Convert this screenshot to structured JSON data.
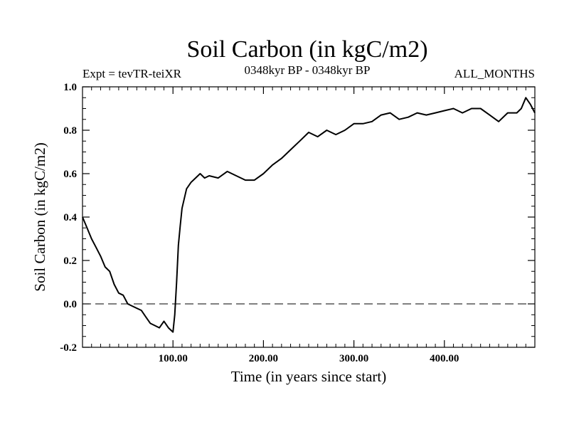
{
  "chart_data": {
    "type": "line",
    "title": "Soil Carbon (in kgC/m2)",
    "left_subtitle": "Expt = tevTR-teiXR",
    "center_subtitle": "0348kyr BP - 0348kyr BP",
    "right_subtitle": "ALL_MONTHS",
    "xlabel": "Time (in years since start)",
    "ylabel": "Soil Carbon (in kgC/m2)",
    "xlim": [
      0,
      500
    ],
    "ylim": [
      -0.2,
      1.0
    ],
    "x_ticks": [
      100,
      200,
      300,
      400
    ],
    "x_tick_labels": [
      "100.00",
      "200.00",
      "300.00",
      "400.00"
    ],
    "y_ticks": [
      -0.2,
      0.0,
      0.2,
      0.4,
      0.6,
      0.8,
      1.0
    ],
    "y_tick_labels": [
      "-0.2",
      "0.0",
      "0.2",
      "0.4",
      "0.6",
      "0.8",
      "1.0"
    ],
    "reference_line": {
      "y": 0.0,
      "style": "dashed"
    },
    "series": [
      {
        "name": "Soil Carbon",
        "x": [
          0,
          5,
          10,
          15,
          20,
          25,
          30,
          35,
          40,
          45,
          50,
          55,
          60,
          65,
          70,
          75,
          80,
          85,
          90,
          95,
          100,
          102,
          104,
          106,
          108,
          110,
          115,
          120,
          125,
          130,
          135,
          140,
          150,
          160,
          170,
          180,
          190,
          200,
          210,
          220,
          230,
          240,
          250,
          260,
          270,
          280,
          290,
          300,
          310,
          320,
          330,
          340,
          350,
          360,
          370,
          380,
          390,
          400,
          410,
          420,
          430,
          440,
          450,
          460,
          470,
          480,
          485,
          490,
          495,
          500
        ],
        "y": [
          0.4,
          0.35,
          0.3,
          0.26,
          0.22,
          0.17,
          0.15,
          0.09,
          0.05,
          0.04,
          0.0,
          -0.01,
          -0.02,
          -0.03,
          -0.06,
          -0.09,
          -0.1,
          -0.11,
          -0.08,
          -0.11,
          -0.13,
          -0.05,
          0.1,
          0.27,
          0.36,
          0.44,
          0.53,
          0.56,
          0.58,
          0.6,
          0.58,
          0.59,
          0.58,
          0.61,
          0.59,
          0.57,
          0.57,
          0.6,
          0.64,
          0.67,
          0.71,
          0.75,
          0.79,
          0.77,
          0.8,
          0.78,
          0.8,
          0.83,
          0.83,
          0.84,
          0.87,
          0.88,
          0.85,
          0.86,
          0.88,
          0.87,
          0.88,
          0.89,
          0.9,
          0.88,
          0.9,
          0.9,
          0.87,
          0.84,
          0.88,
          0.88,
          0.9,
          0.95,
          0.92,
          0.88
        ]
      }
    ]
  }
}
